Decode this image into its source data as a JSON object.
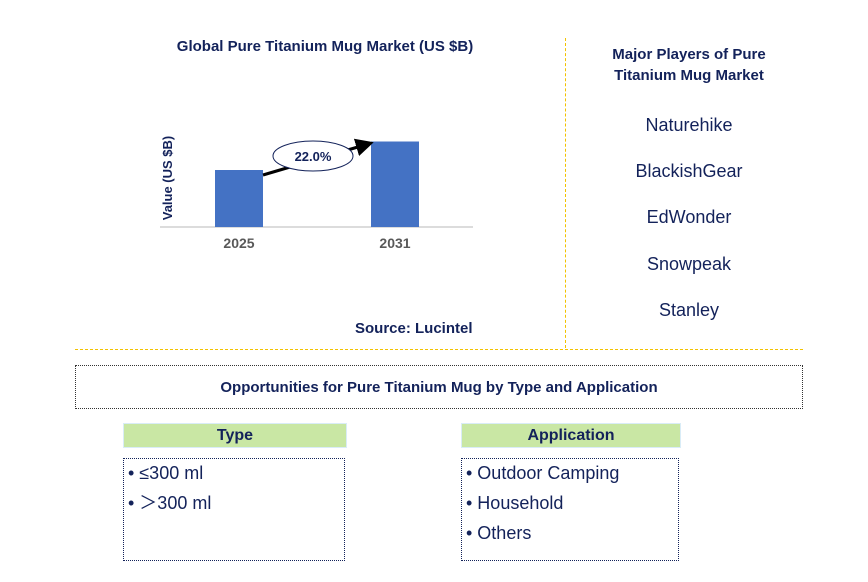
{
  "chart_data": {
    "type": "bar",
    "title": "Global Pure Titanium Mug Market (US $B)",
    "ylabel": "Value (US $B)",
    "categories": [
      "2025",
      "2031"
    ],
    "values": [
      1.0,
      1.5
    ],
    "annotation": "22.0%",
    "bar_color": "#4472c4",
    "grid": false,
    "source": "Source: Lucintel"
  },
  "players": {
    "title_line1": "Major Players of Pure",
    "title_line2": "Titanium Mug Market",
    "items": [
      "Naturehike",
      "BlackishGear",
      "EdWonder",
      "Snowpeak",
      "Stanley"
    ]
  },
  "opportunities": {
    "title": "Opportunities for Pure Titanium Mug by Type and Application",
    "type": {
      "header": "Type",
      "items": [
        "• ≤300 ml",
        "• ＞300 ml"
      ]
    },
    "application": {
      "header": "Application",
      "items": [
        "• Outdoor Camping",
        "• Household",
        "• Others"
      ]
    }
  },
  "colors": {
    "accent_line": "#f2c200",
    "header_fill": "#c9e7a4",
    "text": "#13225a"
  }
}
